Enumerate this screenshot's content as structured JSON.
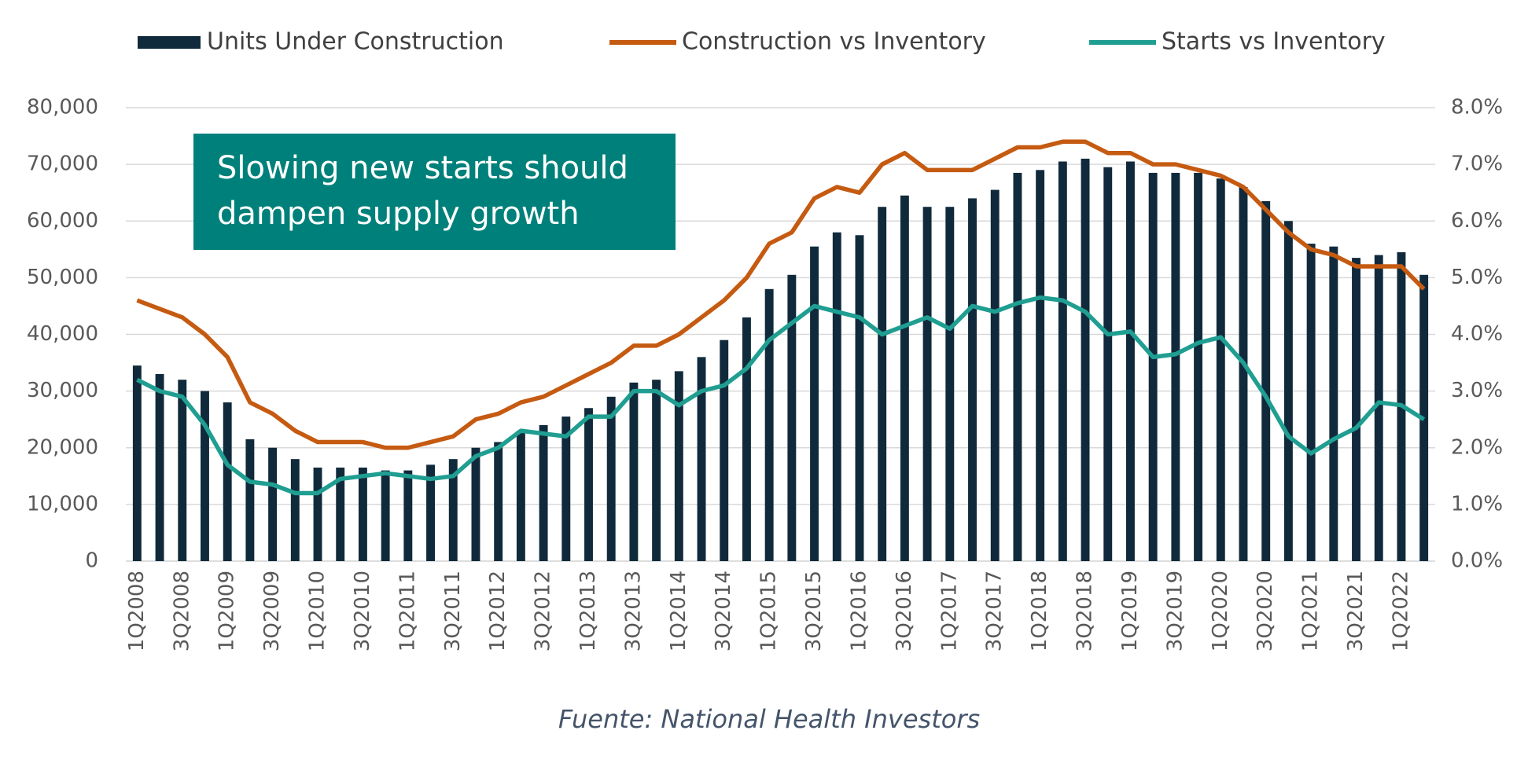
{
  "chart_data": {
    "type": "bar",
    "annotation": [
      "Slowing new starts should",
      "dampen supply growth"
    ],
    "source": "Fuente: National Health Investors",
    "categories": [
      "1Q2008",
      null,
      "3Q2008",
      null,
      "1Q2009",
      null,
      "3Q2009",
      null,
      "1Q2010",
      null,
      "3Q2010",
      null,
      "1Q2011",
      null,
      "3Q2011",
      null,
      "1Q2012",
      null,
      "3Q2012",
      null,
      "1Q2013",
      null,
      "3Q2013",
      null,
      "1Q2014",
      null,
      "3Q2014",
      null,
      "1Q2015",
      null,
      "3Q2015",
      null,
      "1Q2016",
      null,
      "3Q2016",
      null,
      "1Q2017",
      null,
      "3Q2017",
      null,
      "1Q2018",
      null,
      "3Q2018",
      null,
      "1Q2019",
      null,
      "3Q2019",
      null,
      "1Q2020",
      null,
      "3Q2020",
      null,
      "1Q2021",
      null,
      "3Q2021",
      null,
      "1Q2022",
      null
    ],
    "series": [
      {
        "name": "Units Under Construction",
        "type": "bar",
        "color": "#102a3c",
        "values": [
          34500,
          33000,
          32000,
          30000,
          28000,
          21500,
          20000,
          18000,
          16500,
          16500,
          16500,
          16000,
          16000,
          17000,
          18000,
          20000,
          21000,
          23000,
          24000,
          25500,
          27000,
          29000,
          31500,
          32000,
          33500,
          36000,
          39000,
          43000,
          48000,
          50500,
          55500,
          58000,
          57500,
          62500,
          64500,
          62500,
          62500,
          64000,
          65500,
          68500,
          69000,
          70500,
          71000,
          69500,
          70500,
          68500,
          68500,
          68500,
          67500,
          66000,
          63500,
          60000,
          56000,
          55500,
          53500,
          54000,
          54500,
          50500
        ]
      },
      {
        "name": "Construction vs Inventory",
        "type": "line",
        "axis": "y2",
        "color": "#c55a11",
        "values": [
          4.6,
          4.45,
          4.3,
          4.0,
          3.6,
          2.8,
          2.6,
          2.3,
          2.1,
          2.1,
          2.1,
          2.0,
          2.0,
          2.1,
          2.2,
          2.5,
          2.6,
          2.8,
          2.9,
          3.1,
          3.3,
          3.5,
          3.8,
          3.8,
          4.0,
          4.3,
          4.6,
          5.0,
          5.6,
          5.8,
          6.4,
          6.6,
          6.5,
          7.0,
          7.2,
          6.9,
          6.9,
          6.9,
          7.1,
          7.3,
          7.3,
          7.4,
          7.4,
          7.2,
          7.2,
          7.0,
          7.0,
          6.9,
          6.8,
          6.6,
          6.2,
          5.8,
          5.5,
          5.4,
          5.2,
          5.2,
          5.2,
          4.8
        ]
      },
      {
        "name": "Starts vs Inventory",
        "type": "line",
        "axis": "y2",
        "color": "#1f9e91",
        "values": [
          3.2,
          3.0,
          2.9,
          2.4,
          1.7,
          1.4,
          1.35,
          1.2,
          1.2,
          1.45,
          1.5,
          1.55,
          1.5,
          1.45,
          1.5,
          1.85,
          2.0,
          2.3,
          2.25,
          2.2,
          2.55,
          2.55,
          3.0,
          3.0,
          2.75,
          3.0,
          3.1,
          3.4,
          3.9,
          4.2,
          4.5,
          4.4,
          4.3,
          4.0,
          4.15,
          4.3,
          4.1,
          4.5,
          4.4,
          4.55,
          4.65,
          4.6,
          4.4,
          4.0,
          4.05,
          3.6,
          3.65,
          3.85,
          3.95,
          3.5,
          2.9,
          2.2,
          1.9,
          2.15,
          2.35,
          2.8,
          2.75,
          2.5
        ]
      }
    ],
    "ylim": [
      0,
      80000
    ],
    "yticks": [
      0,
      {
        "value": 10000,
        "label": "10,000"
      },
      {
        "value": 20000,
        "label": "20,000"
      },
      {
        "value": 30000,
        "label": "30,000"
      },
      {
        "value": 40000,
        "label": "40,000"
      },
      {
        "value": 50000,
        "label": "50,000"
      },
      {
        "value": 60000,
        "label": "60,000"
      },
      {
        "value": 70000,
        "label": "70,000"
      },
      {
        "value": 80000,
        "label": "80,000"
      }
    ],
    "y2lim": [
      0,
      8
    ],
    "y2ticks": [
      {
        "value": 0,
        "label": "0.0%"
      },
      {
        "value": 1,
        "label": "1.0%"
      },
      {
        "value": 2,
        "label": "2.0%"
      },
      {
        "value": 3,
        "label": "3.0%"
      },
      {
        "value": 4,
        "label": "4.0%"
      },
      {
        "value": 5,
        "label": "5.0%"
      },
      {
        "value": 6,
        "label": "6.0%"
      },
      {
        "value": 7,
        "label": "7.0%"
      },
      {
        "value": 8,
        "label": "8.0%"
      }
    ],
    "grid": true
  }
}
